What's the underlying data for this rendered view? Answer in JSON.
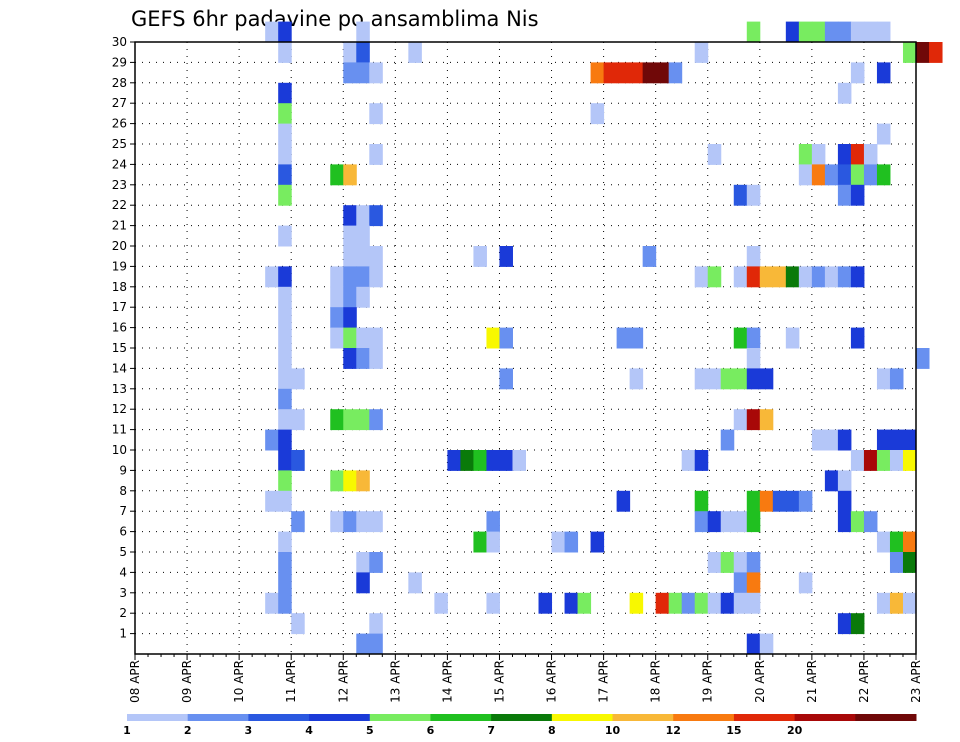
{
  "chart_data": {
    "type": "heatmap",
    "title": "GEFS 6hr padavine po ansamblima Nis",
    "x_tick_labels": [
      "08 APR",
      "09 APR",
      "10 APR",
      "11 APR",
      "12 APR",
      "13 APR",
      "14 APR",
      "15 APR",
      "16 APR",
      "17 APR",
      "18 APR",
      "19 APR",
      "20 APR",
      "21 APR",
      "22 APR",
      "23 APR"
    ],
    "y_tick_labels": [
      "1",
      "2",
      "3",
      "4",
      "5",
      "6",
      "7",
      "8",
      "9",
      "10",
      "11",
      "12",
      "13",
      "14",
      "15",
      "16",
      "17",
      "18",
      "19",
      "20",
      "21",
      "22",
      "23",
      "24",
      "25",
      "26",
      "27",
      "28",
      "29",
      "30"
    ],
    "xlim_days": [
      0,
      15
    ],
    "ylim": [
      0,
      30
    ],
    "grid": "dotted",
    "legend": {
      "placement": "bottom",
      "labels": [
        "1",
        "2",
        "3",
        "4",
        "5",
        "6",
        "7",
        "8",
        "10",
        "12",
        "15",
        "20"
      ],
      "colors": [
        "#b4c6f8",
        "#6890f0",
        "#2a58e0",
        "#1a3ad8",
        "#78ec60",
        "#20c020",
        "#0a7a0a",
        "#f8f800",
        "#f8b838",
        "#f87a10",
        "#e02808",
        "#a80808",
        "#700808"
      ]
    },
    "cells": [
      [
        2.5,
        30,
        0
      ],
      [
        2.75,
        30,
        3
      ],
      [
        4.25,
        30,
        0
      ],
      [
        11.75,
        30,
        4
      ],
      [
        12.5,
        30,
        3
      ],
      [
        12.75,
        30,
        4
      ],
      [
        13,
        30,
        4
      ],
      [
        13.25,
        30,
        1
      ],
      [
        13.5,
        30,
        1
      ],
      [
        13.75,
        30,
        0
      ],
      [
        14,
        30,
        0
      ],
      [
        14.25,
        30,
        0
      ],
      [
        2.75,
        29,
        0
      ],
      [
        4,
        29,
        0
      ],
      [
        4.25,
        29,
        2
      ],
      [
        5.25,
        29,
        0
      ],
      [
        10.75,
        29,
        0
      ],
      [
        14.75,
        29,
        4
      ],
      [
        15,
        29,
        12
      ],
      [
        15.25,
        29,
        10
      ],
      [
        4,
        28,
        1
      ],
      [
        4.25,
        28,
        1
      ],
      [
        4.5,
        28,
        0
      ],
      [
        8.75,
        28,
        9
      ],
      [
        9,
        28,
        10
      ],
      [
        9.25,
        28,
        10
      ],
      [
        9.5,
        28,
        10
      ],
      [
        9.75,
        28,
        12
      ],
      [
        10,
        28,
        12
      ],
      [
        10.25,
        28,
        1
      ],
      [
        13.75,
        28,
        0
      ],
      [
        14.25,
        28,
        3
      ],
      [
        2.75,
        27,
        3
      ],
      [
        13.5,
        27,
        0
      ],
      [
        2.75,
        26,
        4
      ],
      [
        4.5,
        26,
        0
      ],
      [
        8.75,
        26,
        0
      ],
      [
        2.75,
        25,
        0
      ],
      [
        14.25,
        25,
        0
      ],
      [
        2.75,
        24,
        0
      ],
      [
        4.5,
        24,
        0
      ],
      [
        11,
        24,
        0
      ],
      [
        12.75,
        24,
        4
      ],
      [
        13,
        24,
        0
      ],
      [
        13.5,
        24,
        3
      ],
      [
        13.75,
        24,
        10
      ],
      [
        14,
        24,
        0
      ],
      [
        2.75,
        23,
        2
      ],
      [
        3.75,
        23,
        5
      ],
      [
        4,
        23,
        8
      ],
      [
        12.75,
        23,
        0
      ],
      [
        13,
        23,
        9
      ],
      [
        13.25,
        23,
        1
      ],
      [
        13.5,
        23,
        2
      ],
      [
        13.75,
        23,
        4
      ],
      [
        14,
        23,
        1
      ],
      [
        14.25,
        23,
        5
      ],
      [
        2.75,
        22,
        4
      ],
      [
        11.5,
        22,
        2
      ],
      [
        11.75,
        22,
        0
      ],
      [
        13.5,
        22,
        1
      ],
      [
        13.75,
        22,
        3
      ],
      [
        4,
        21,
        3
      ],
      [
        4.25,
        21,
        0
      ],
      [
        4.5,
        21,
        2
      ],
      [
        2.75,
        20,
        0
      ],
      [
        4,
        20,
        0
      ],
      [
        4.25,
        20,
        0
      ],
      [
        4,
        19,
        0
      ],
      [
        4.25,
        19,
        0
      ],
      [
        4.5,
        19,
        0
      ],
      [
        6.5,
        19,
        0
      ],
      [
        7,
        19,
        3
      ],
      [
        9.75,
        19,
        1
      ],
      [
        11.75,
        19,
        0
      ],
      [
        2.5,
        18,
        0
      ],
      [
        2.75,
        18,
        3
      ],
      [
        3.75,
        18,
        0
      ],
      [
        4,
        18,
        1
      ],
      [
        4.25,
        18,
        1
      ],
      [
        4.5,
        18,
        0
      ],
      [
        10.75,
        18,
        0
      ],
      [
        11,
        18,
        4
      ],
      [
        11.5,
        18,
        0
      ],
      [
        11.75,
        18,
        10
      ],
      [
        12,
        18,
        8
      ],
      [
        12.25,
        18,
        8
      ],
      [
        12.5,
        18,
        6
      ],
      [
        12.75,
        18,
        0
      ],
      [
        13,
        18,
        1
      ],
      [
        13.25,
        18,
        0
      ],
      [
        13.5,
        18,
        1
      ],
      [
        13.75,
        18,
        3
      ],
      [
        2.75,
        17,
        0
      ],
      [
        3.75,
        17,
        0
      ],
      [
        4,
        17,
        1
      ],
      [
        4.25,
        17,
        0
      ],
      [
        2.75,
        16,
        0
      ],
      [
        3.75,
        16,
        1
      ],
      [
        4,
        16,
        3
      ],
      [
        2.75,
        15,
        0
      ],
      [
        3.75,
        15,
        0
      ],
      [
        4,
        15,
        4
      ],
      [
        4.25,
        15,
        0
      ],
      [
        4.5,
        15,
        0
      ],
      [
        6.75,
        15,
        7
      ],
      [
        7,
        15,
        1
      ],
      [
        9.25,
        15,
        1
      ],
      [
        9.5,
        15,
        1
      ],
      [
        11.5,
        15,
        5
      ],
      [
        11.75,
        15,
        1
      ],
      [
        12.5,
        15,
        0
      ],
      [
        13.75,
        15,
        3
      ],
      [
        2.75,
        14,
        0
      ],
      [
        4,
        14,
        3
      ],
      [
        4.25,
        14,
        1
      ],
      [
        4.5,
        14,
        0
      ],
      [
        11.75,
        14,
        0
      ],
      [
        15,
        14,
        1
      ],
      [
        2.75,
        13,
        0
      ],
      [
        3,
        13,
        0
      ],
      [
        7,
        13,
        1
      ],
      [
        9.5,
        13,
        0
      ],
      [
        10.75,
        13,
        0
      ],
      [
        11,
        13,
        0
      ],
      [
        11.25,
        13,
        4
      ],
      [
        11.5,
        13,
        4
      ],
      [
        11.75,
        13,
        3
      ],
      [
        12,
        13,
        3
      ],
      [
        14.25,
        13,
        0
      ],
      [
        14.5,
        13,
        1
      ],
      [
        2.75,
        12,
        1
      ],
      [
        2.75,
        11,
        0
      ],
      [
        3,
        11,
        0
      ],
      [
        3.75,
        11,
        5
      ],
      [
        4,
        11,
        4
      ],
      [
        4.25,
        11,
        4
      ],
      [
        4.5,
        11,
        1
      ],
      [
        11.5,
        11,
        0
      ],
      [
        11.75,
        11,
        11
      ],
      [
        12,
        11,
        8
      ],
      [
        2.5,
        10,
        1
      ],
      [
        2.75,
        10,
        3
      ],
      [
        11.25,
        10,
        1
      ],
      [
        13,
        10,
        0
      ],
      [
        13.25,
        10,
        0
      ],
      [
        13.5,
        10,
        3
      ],
      [
        14.25,
        10,
        3
      ],
      [
        14.5,
        10,
        3
      ],
      [
        14.75,
        10,
        3
      ],
      [
        2.75,
        9,
        3
      ],
      [
        3,
        9,
        2
      ],
      [
        6,
        9,
        3
      ],
      [
        6.25,
        9,
        6
      ],
      [
        6.5,
        9,
        5
      ],
      [
        6.75,
        9,
        3
      ],
      [
        7,
        9,
        3
      ],
      [
        7.25,
        9,
        0
      ],
      [
        10.5,
        9,
        0
      ],
      [
        10.75,
        9,
        3
      ],
      [
        13.75,
        9,
        0
      ],
      [
        14,
        9,
        11
      ],
      [
        14.25,
        9,
        4
      ],
      [
        14.5,
        9,
        0
      ],
      [
        14.75,
        9,
        7
      ],
      [
        2.75,
        8,
        4
      ],
      [
        3.75,
        8,
        4
      ],
      [
        4,
        8,
        7
      ],
      [
        4.25,
        8,
        8
      ],
      [
        13.25,
        8,
        3
      ],
      [
        13.5,
        8,
        0
      ],
      [
        2.5,
        7,
        0
      ],
      [
        2.75,
        7,
        0
      ],
      [
        9.25,
        7,
        3
      ],
      [
        10.75,
        7,
        5
      ],
      [
        11.75,
        7,
        5
      ],
      [
        12,
        7,
        9
      ],
      [
        12.25,
        7,
        2
      ],
      [
        12.5,
        7,
        2
      ],
      [
        12.75,
        7,
        1
      ],
      [
        13.5,
        7,
        3
      ],
      [
        3,
        6,
        1
      ],
      [
        3.75,
        6,
        0
      ],
      [
        4,
        6,
        1
      ],
      [
        4.25,
        6,
        0
      ],
      [
        4.5,
        6,
        0
      ],
      [
        6.75,
        6,
        1
      ],
      [
        10.75,
        6,
        1
      ],
      [
        11,
        6,
        3
      ],
      [
        11.25,
        6,
        0
      ],
      [
        11.5,
        6,
        0
      ],
      [
        11.75,
        6,
        5
      ],
      [
        13.5,
        6,
        3
      ],
      [
        13.75,
        6,
        4
      ],
      [
        14,
        6,
        1
      ],
      [
        2.75,
        5,
        0
      ],
      [
        6.5,
        5,
        5
      ],
      [
        6.75,
        5,
        0
      ],
      [
        8,
        5,
        0
      ],
      [
        8.25,
        5,
        1
      ],
      [
        8.75,
        5,
        3
      ],
      [
        14.25,
        5,
        0
      ],
      [
        14.5,
        5,
        5
      ],
      [
        14.75,
        5,
        9
      ],
      [
        2.75,
        4,
        1
      ],
      [
        4.25,
        4,
        0
      ],
      [
        4.5,
        4,
        1
      ],
      [
        11,
        4,
        0
      ],
      [
        11.25,
        4,
        4
      ],
      [
        11.5,
        4,
        0
      ],
      [
        11.75,
        4,
        1
      ],
      [
        14.5,
        4,
        1
      ],
      [
        14.75,
        4,
        6
      ],
      [
        2.75,
        3,
        1
      ],
      [
        4.25,
        3,
        3
      ],
      [
        5.25,
        3,
        0
      ],
      [
        11.5,
        3,
        1
      ],
      [
        11.75,
        3,
        9
      ],
      [
        12.75,
        3,
        0
      ],
      [
        2.5,
        2,
        0
      ],
      [
        2.75,
        2,
        1
      ],
      [
        5.75,
        2,
        0
      ],
      [
        6.75,
        2,
        0
      ],
      [
        7.75,
        2,
        3
      ],
      [
        8.25,
        2,
        3
      ],
      [
        8.5,
        2,
        4
      ],
      [
        9.5,
        2,
        7
      ],
      [
        10,
        2,
        10
      ],
      [
        10.25,
        2,
        4
      ],
      [
        10.5,
        2,
        1
      ],
      [
        10.75,
        2,
        4
      ],
      [
        11,
        2,
        0
      ],
      [
        11.25,
        2,
        3
      ],
      [
        11.5,
        2,
        0
      ],
      [
        11.75,
        2,
        0
      ],
      [
        14.25,
        2,
        0
      ],
      [
        14.5,
        2,
        8
      ],
      [
        14.75,
        2,
        0
      ],
      [
        3,
        1,
        0
      ],
      [
        4.5,
        1,
        0
      ],
      [
        13.5,
        1,
        3
      ],
      [
        13.75,
        1,
        6
      ],
      [
        4.25,
        0,
        1
      ],
      [
        4.5,
        0,
        1
      ],
      [
        11.75,
        0,
        3
      ],
      [
        12,
        0,
        0
      ]
    ]
  }
}
